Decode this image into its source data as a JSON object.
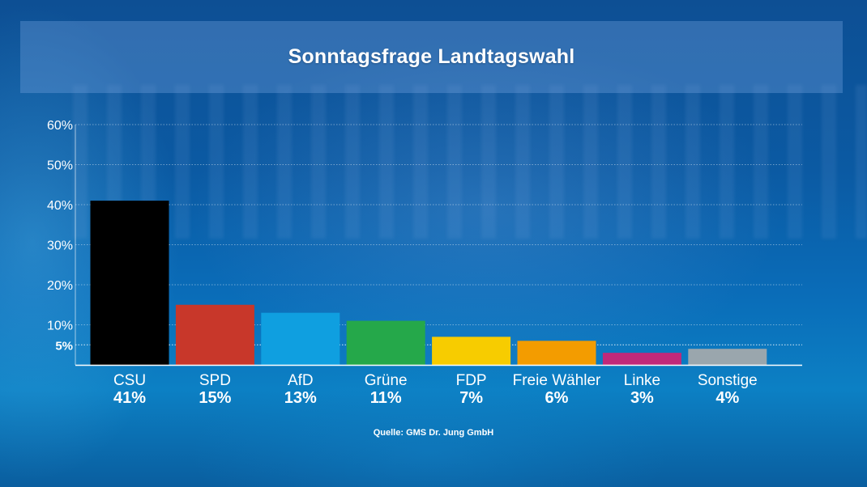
{
  "title": "Sonntagsfrage Landtagswahl",
  "source": "Quelle: GMS Dr. Jung GmbH",
  "chart_data": {
    "type": "bar",
    "title": "Sonntagsfrage Landtagswahl",
    "categories": [
      "CSU",
      "SPD",
      "AfD",
      "Grüne",
      "FDP",
      "Freie Wähler",
      "Linke",
      "Sonstige"
    ],
    "values": [
      41,
      15,
      13,
      11,
      7,
      6,
      3,
      4
    ],
    "value_labels": [
      "41%",
      "15%",
      "13%",
      "11%",
      "7%",
      "6%",
      "3%",
      "4%"
    ],
    "colors": [
      "#000000",
      "#c8372a",
      "#0f9fe0",
      "#25a84a",
      "#f7cc00",
      "#f39c00",
      "#c0297a",
      "#9aa6ad"
    ],
    "yticks": [
      {
        "value": 60,
        "label": "60%"
      },
      {
        "value": 50,
        "label": "50%"
      },
      {
        "value": 40,
        "label": "40%"
      },
      {
        "value": 30,
        "label": "30%"
      },
      {
        "value": 20,
        "label": "20%"
      },
      {
        "value": 10,
        "label": "10%"
      }
    ],
    "threshold": {
      "value": 5,
      "label": "5%"
    },
    "ylim": [
      0,
      60
    ],
    "xlabel": "",
    "ylabel": "",
    "grid": true,
    "legend": "none"
  }
}
